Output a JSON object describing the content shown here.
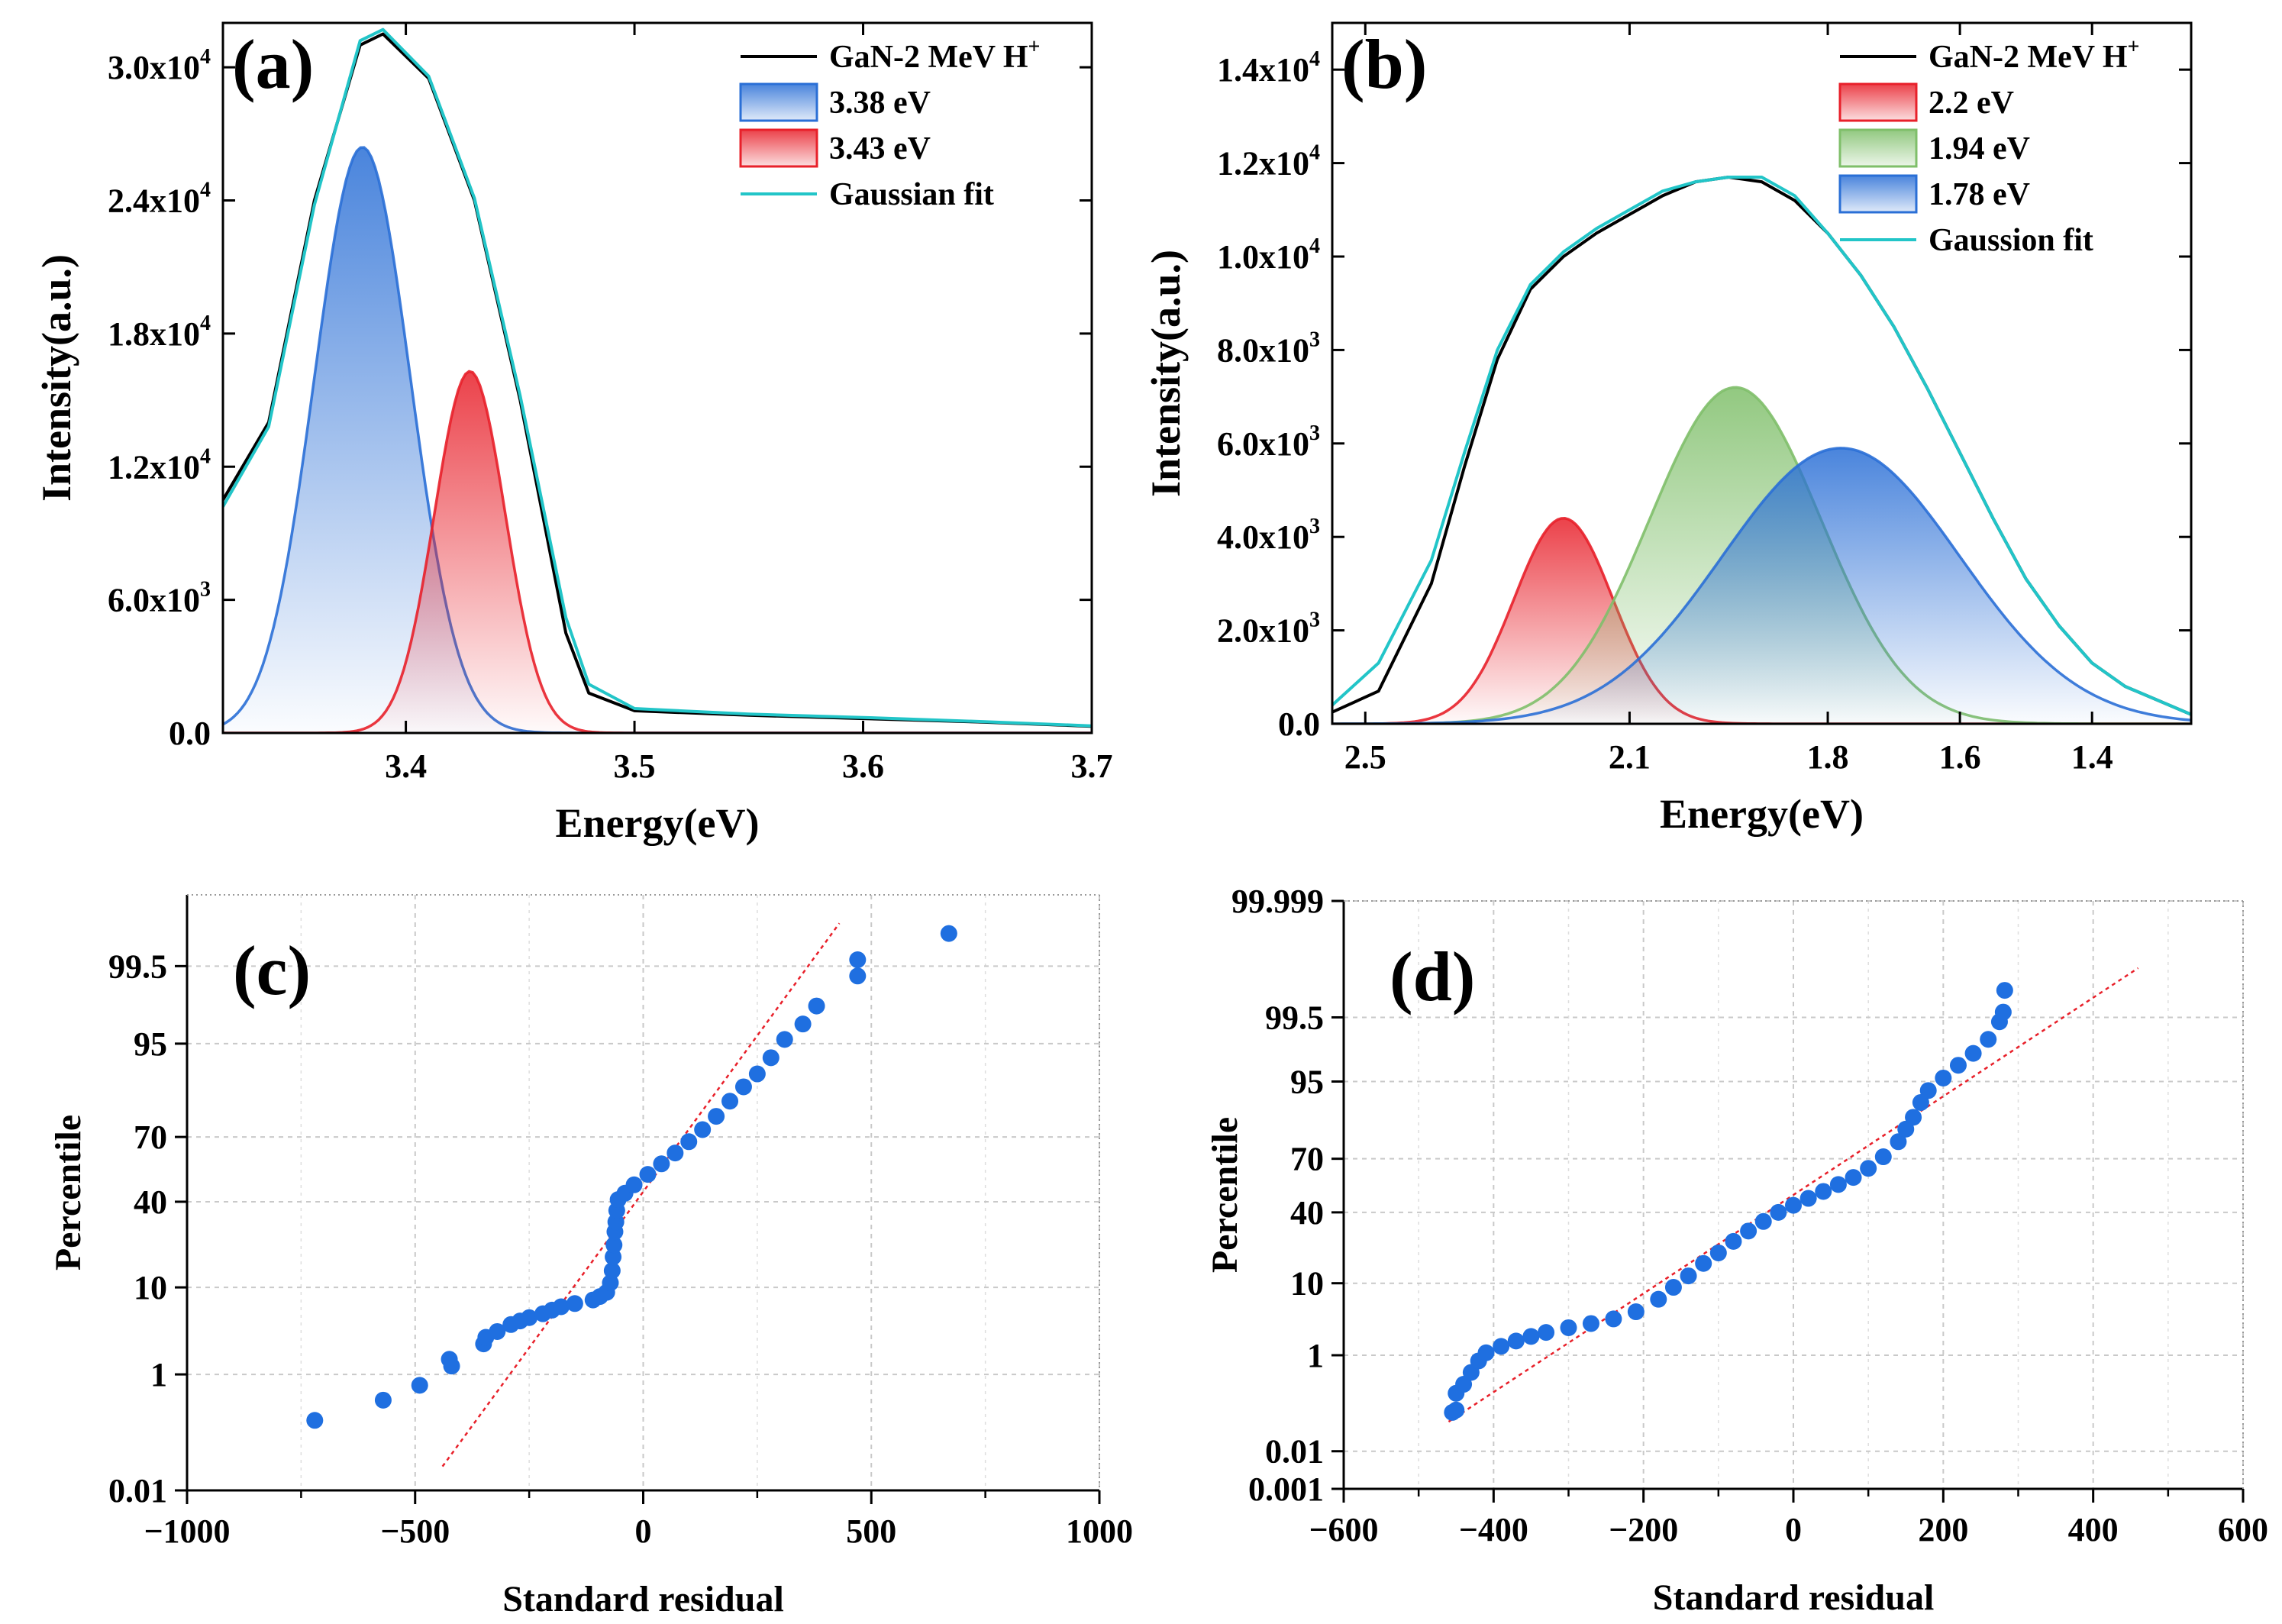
{
  "chart_data": [
    {
      "id": "a",
      "type": "line",
      "panel_label": "(a)",
      "xlabel": "Energy(eV)",
      "ylabel": "Intensity(a.u.)",
      "xlim": [
        3.32,
        3.7
      ],
      "ylim": [
        0,
        32000
      ],
      "xticks": [
        3.4,
        3.5,
        3.6,
        3.7
      ],
      "xtick_labels": [
        "3.4",
        "3.5",
        "3.6",
        "3.7"
      ],
      "yticks": [
        0,
        6000,
        12000,
        18000,
        24000,
        30000
      ],
      "ytick_labels": [
        {
          "mant": "0.0",
          "exp": ""
        },
        {
          "mant": "6.0x10",
          "exp": "3"
        },
        {
          "mant": "1.2x10",
          "exp": "4"
        },
        {
          "mant": "1.8x10",
          "exp": "4"
        },
        {
          "mant": "2.4x10",
          "exp": "4"
        },
        {
          "mant": "3.0x10",
          "exp": "4"
        }
      ],
      "legend": [
        {
          "label": "GaN-2 MeV H",
          "sup": "+",
          "kind": "line",
          "color": "#000000"
        },
        {
          "label": "3.38 eV",
          "sup": "",
          "kind": "fill",
          "color": "#2a6fd6"
        },
        {
          "label": "3.43 eV",
          "sup": "",
          "kind": "fill",
          "color": "#e8202a"
        },
        {
          "label": "Gaussian fit",
          "sup": "",
          "kind": "line",
          "color": "#22c5c8"
        }
      ],
      "series": [
        {
          "name": "GaN-2 MeV H+",
          "color": "#000000",
          "x": [
            3.32,
            3.34,
            3.36,
            3.38,
            3.39,
            3.41,
            3.43,
            3.45,
            3.47,
            3.48,
            3.5,
            3.55,
            3.6,
            3.65,
            3.7
          ],
          "y": [
            10500,
            14000,
            24000,
            31000,
            31500,
            29500,
            24000,
            15000,
            4500,
            1800,
            1000,
            800,
            650,
            500,
            300
          ]
        },
        {
          "name": "Gaussian fit",
          "color": "#22c5c8",
          "x": [
            3.32,
            3.34,
            3.36,
            3.38,
            3.39,
            3.41,
            3.43,
            3.45,
            3.47,
            3.48,
            3.5,
            3.55,
            3.6,
            3.65,
            3.7
          ],
          "y": [
            10200,
            13800,
            23800,
            31200,
            31700,
            29600,
            24100,
            15200,
            5200,
            2200,
            1100,
            850,
            700,
            520,
            320
          ]
        },
        {
          "name": "3.38 eV",
          "type": "gaussian",
          "center": 3.381,
          "amplitude": 26400,
          "sigma": 0.021,
          "color": "#2a6fd6",
          "fill": true
        },
        {
          "name": "3.43 eV",
          "type": "gaussian",
          "center": 3.428,
          "amplitude": 16300,
          "sigma": 0.0155,
          "color": "#e8202a",
          "fill": true
        }
      ]
    },
    {
      "id": "b",
      "type": "line",
      "panel_label": "(b)",
      "xlabel": "Energy(eV)",
      "ylabel": "Intensity(a.u.)",
      "xlim": [
        2.55,
        1.25
      ],
      "ylim": [
        0,
        15000
      ],
      "xticks": [
        2.5,
        2.1,
        1.8,
        1.6,
        1.4
      ],
      "xtick_labels": [
        "2.5",
        "2.1",
        "1.8",
        "1.6",
        "1.4"
      ],
      "yticks": [
        0,
        2000,
        4000,
        6000,
        8000,
        10000,
        12000,
        14000
      ],
      "ytick_labels": [
        {
          "mant": "0.0",
          "exp": ""
        },
        {
          "mant": "2.0x10",
          "exp": "3"
        },
        {
          "mant": "4.0x10",
          "exp": "3"
        },
        {
          "mant": "6.0x10",
          "exp": "3"
        },
        {
          "mant": "8.0x10",
          "exp": "3"
        },
        {
          "mant": "1.0x10",
          "exp": "4"
        },
        {
          "mant": "1.2x10",
          "exp": "4"
        },
        {
          "mant": "1.4x10",
          "exp": "4"
        }
      ],
      "legend": [
        {
          "label": "GaN-2 MeV H",
          "sup": "+",
          "kind": "line",
          "color": "#000000"
        },
        {
          "label": "2.2 eV",
          "sup": "",
          "kind": "fill",
          "color": "#e8202a"
        },
        {
          "label": "1.94 eV",
          "sup": "",
          "kind": "fill",
          "color": "#7fbf6a"
        },
        {
          "label": "1.78 eV",
          "sup": "",
          "kind": "fill",
          "color": "#2a6fd6"
        },
        {
          "label": "Gaussion fit",
          "sup": "",
          "kind": "line",
          "color": "#22c5c8"
        }
      ],
      "series": [
        {
          "name": "GaN-2 MeV H+",
          "color": "#000000",
          "x": [
            2.55,
            2.48,
            2.4,
            2.35,
            2.3,
            2.25,
            2.2,
            2.15,
            2.1,
            2.05,
            2.0,
            1.95,
            1.9,
            1.85,
            1.8,
            1.75,
            1.7,
            1.65,
            1.6,
            1.55,
            1.5,
            1.45,
            1.4,
            1.35,
            1.25
          ],
          "y": [
            250,
            700,
            3000,
            5500,
            7800,
            9300,
            10000,
            10500,
            10900,
            11300,
            11600,
            11700,
            11600,
            11200,
            10500,
            9600,
            8500,
            7200,
            5800,
            4400,
            3100,
            2100,
            1300,
            800,
            200
          ]
        },
        {
          "name": "Gaussion fit",
          "color": "#22c5c8",
          "x": [
            2.55,
            2.48,
            2.4,
            2.35,
            2.3,
            2.25,
            2.2,
            2.15,
            2.1,
            2.05,
            2.0,
            1.95,
            1.9,
            1.85,
            1.8,
            1.75,
            1.7,
            1.65,
            1.6,
            1.55,
            1.5,
            1.45,
            1.4,
            1.35,
            1.25
          ],
          "y": [
            400,
            1300,
            3500,
            5800,
            8000,
            9400,
            10100,
            10600,
            11000,
            11400,
            11600,
            11700,
            11700,
            11300,
            10500,
            9600,
            8500,
            7200,
            5800,
            4400,
            3100,
            2100,
            1300,
            800,
            200
          ]
        },
        {
          "name": "2.2 eV",
          "type": "gaussian",
          "center": 2.2,
          "amplitude": 4400,
          "sigma": 0.075,
          "color": "#e8202a",
          "fill": true
        },
        {
          "name": "1.94 eV",
          "type": "gaussian",
          "center": 1.94,
          "amplitude": 7200,
          "sigma": 0.13,
          "color": "#7fbf6a",
          "fill": true
        },
        {
          "name": "1.78 eV",
          "type": "gaussian",
          "center": 1.78,
          "amplitude": 5900,
          "sigma": 0.18,
          "color": "#2a6fd6",
          "fill": true
        }
      ]
    },
    {
      "id": "c",
      "type": "scatter",
      "panel_label": "(c)",
      "xlabel": "Standard residual",
      "ylabel": "Percentile",
      "xlim": [
        -1000,
        1000
      ],
      "xticks": [
        -1000,
        -500,
        0,
        500,
        1000
      ],
      "xtick_labels": [
        "−1000",
        "−500",
        "0",
        "500",
        "1000"
      ],
      "yscale": "probability",
      "ylim_percent": [
        0.01,
        99.97
      ],
      "yticks_percent": [
        0.01,
        1,
        10,
        40,
        70,
        95,
        99.5
      ],
      "ytick_labels": [
        "0.01",
        "1",
        "10",
        "40",
        "70",
        "95",
        "99.5"
      ],
      "reference_line": {
        "from": [
          -440,
          0.03
        ],
        "to": [
          430,
          99.9
        ],
        "color": "#e8202a",
        "style": "dotted"
      },
      "point_color": "#1f6fe0",
      "points": [
        [
          -720,
          0.2
        ],
        [
          -570,
          0.42
        ],
        [
          -490,
          0.7
        ],
        [
          -420,
          1.3
        ],
        [
          -425,
          1.6
        ],
        [
          -350,
          2.5
        ],
        [
          -345,
          3.0
        ],
        [
          -320,
          3.5
        ],
        [
          -290,
          4.2
        ],
        [
          -270,
          4.6
        ],
        [
          -250,
          5.0
        ],
        [
          -220,
          5.5
        ],
        [
          -200,
          6.0
        ],
        [
          -180,
          6.5
        ],
        [
          -150,
          7.0
        ],
        [
          -110,
          7.6
        ],
        [
          -95,
          8.2
        ],
        [
          -80,
          9.0
        ],
        [
          -72,
          11
        ],
        [
          -68,
          14
        ],
        [
          -66,
          18
        ],
        [
          -64,
          22
        ],
        [
          -62,
          27
        ],
        [
          -60,
          31
        ],
        [
          -58,
          36
        ],
        [
          -55,
          41
        ],
        [
          -40,
          44
        ],
        [
          -20,
          48
        ],
        [
          10,
          53
        ],
        [
          40,
          58
        ],
        [
          70,
          63
        ],
        [
          100,
          68
        ],
        [
          130,
          73
        ],
        [
          160,
          78
        ],
        [
          190,
          83
        ],
        [
          220,
          87
        ],
        [
          250,
          90
        ],
        [
          280,
          93
        ],
        [
          310,
          95.5
        ],
        [
          350,
          97
        ],
        [
          380,
          98.2
        ],
        [
          470,
          99.3
        ],
        [
          470,
          99.6
        ],
        [
          670,
          99.85
        ]
      ]
    },
    {
      "id": "d",
      "type": "scatter",
      "panel_label": "(d)",
      "xlabel": "Standard residual",
      "ylabel": "Percentile",
      "xlim": [
        -600,
        600
      ],
      "xticks": [
        -600,
        -400,
        -200,
        0,
        200,
        400,
        600
      ],
      "xtick_labels": [
        "−600",
        "−400",
        "−200",
        "0",
        "200",
        "400",
        "600"
      ],
      "yscale": "probability",
      "ylim_percent": [
        0.001,
        99.999
      ],
      "yticks_percent": [
        0.001,
        0.01,
        1,
        10,
        40,
        70,
        95,
        99.5,
        99.999
      ],
      "ytick_labels": [
        "0.001",
        "0.01",
        "1",
        "10",
        "40",
        "70",
        "95",
        "99.5",
        "99.999"
      ],
      "reference_line": {
        "from": [
          -460,
          0.05
        ],
        "to": [
          460,
          99.95
        ],
        "color": "#e8202a",
        "style": "dotted"
      },
      "point_color": "#1f6fe0",
      "points": [
        [
          -455,
          0.08
        ],
        [
          -450,
          0.09
        ],
        [
          -450,
          0.2
        ],
        [
          -440,
          0.3
        ],
        [
          -430,
          0.5
        ],
        [
          -420,
          0.8
        ],
        [
          -410,
          1.1
        ],
        [
          -390,
          1.4
        ],
        [
          -370,
          1.7
        ],
        [
          -350,
          2.0
        ],
        [
          -330,
          2.3
        ],
        [
          -300,
          2.7
        ],
        [
          -270,
          3.1
        ],
        [
          -240,
          3.6
        ],
        [
          -210,
          4.5
        ],
        [
          -180,
          6.5
        ],
        [
          -160,
          9
        ],
        [
          -140,
          12
        ],
        [
          -120,
          16
        ],
        [
          -100,
          20
        ],
        [
          -80,
          25
        ],
        [
          -60,
          30
        ],
        [
          -40,
          35
        ],
        [
          -20,
          40
        ],
        [
          0,
          44
        ],
        [
          20,
          48
        ],
        [
          40,
          52
        ],
        [
          60,
          56
        ],
        [
          80,
          60
        ],
        [
          100,
          65
        ],
        [
          120,
          71
        ],
        [
          140,
          78
        ],
        [
          150,
          83
        ],
        [
          160,
          87
        ],
        [
          170,
          91
        ],
        [
          180,
          93.5
        ],
        [
          200,
          95.5
        ],
        [
          220,
          97
        ],
        [
          240,
          98
        ],
        [
          260,
          98.8
        ],
        [
          275,
          99.4
        ],
        [
          280,
          99.6
        ],
        [
          282,
          99.85
        ]
      ]
    }
  ]
}
